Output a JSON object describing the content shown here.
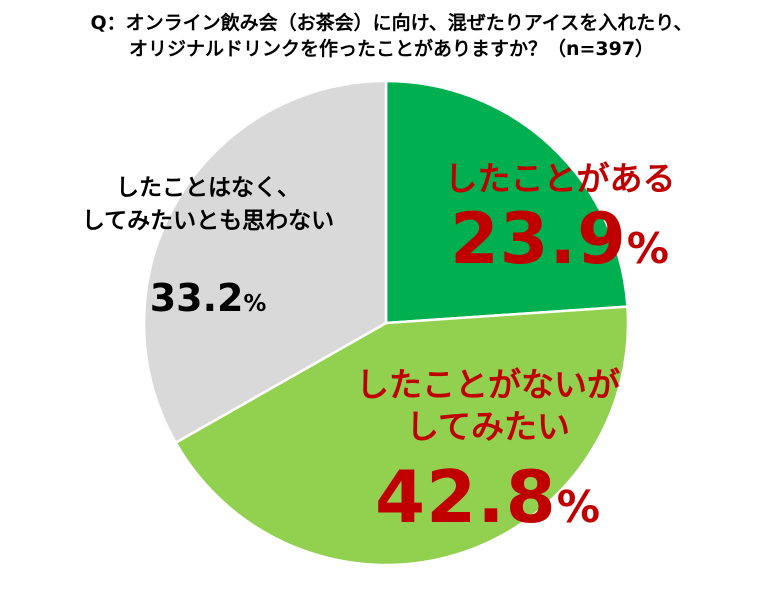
{
  "title": {
    "line1": "Q：オンライン飲み会（お茶会）に向け、混ぜたりアイスを入れたり、",
    "line2": "オリジナルドリンクを作ったことがありますか？（n=397）"
  },
  "chart_data": {
    "type": "pie",
    "title": "Q：オンライン飲み会（お茶会）に向け、混ぜたりアイスを入れたり、オリジナルドリンクを作ったことがありますか？（n=397）",
    "unit": "%",
    "start_angle_deg": 0,
    "direction": "clockwise",
    "slices": [
      {
        "label": "したことがある",
        "value": 23.9,
        "display": "23.9",
        "color": "#00b050",
        "label_color": "#c00000",
        "label_lines": [
          "したことがある"
        ]
      },
      {
        "label": "したことがないがしてみたい",
        "value": 42.8,
        "display": "42.8",
        "color": "#92d050",
        "label_color": "#c00000",
        "label_lines": [
          "したことがないが",
          "してみたい"
        ]
      },
      {
        "label": "したことはなく、してみたいとも思わない",
        "value": 33.2,
        "display": "33.2",
        "color": "#d9d9d9",
        "label_color": "#000000",
        "label_lines": [
          "したことはなく、",
          "してみたいとも思わない"
        ]
      }
    ]
  }
}
